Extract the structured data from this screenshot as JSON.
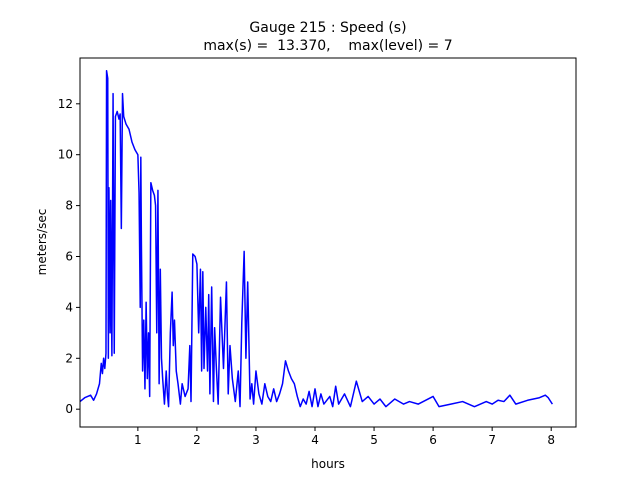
{
  "chart_data": {
    "type": "line",
    "title": "Gauge 215 : Speed (s)",
    "subtitle": "max(s) =  13.370,    max(level) = 7",
    "xlabel": "hours",
    "ylabel": "meters/sec",
    "xlim": [
      0.02,
      8.42
    ],
    "ylim": [
      -0.7,
      13.8
    ],
    "xticks": [
      1,
      2,
      3,
      4,
      5,
      6,
      7,
      8
    ],
    "yticks": [
      0,
      2,
      4,
      6,
      8,
      10,
      12
    ],
    "series": [
      {
        "color": "#0000ff",
        "x": [
          0.02,
          0.1,
          0.2,
          0.25,
          0.3,
          0.35,
          0.38,
          0.4,
          0.42,
          0.44,
          0.46,
          0.47,
          0.49,
          0.5,
          0.51,
          0.53,
          0.54,
          0.56,
          0.58,
          0.6,
          0.62,
          0.65,
          0.68,
          0.7,
          0.72,
          0.74,
          0.76,
          0.8,
          0.85,
          0.9,
          0.95,
          1.0,
          1.02,
          1.04,
          1.05,
          1.06,
          1.08,
          1.1,
          1.12,
          1.14,
          1.16,
          1.18,
          1.2,
          1.22,
          1.25,
          1.28,
          1.3,
          1.32,
          1.34,
          1.36,
          1.38,
          1.4,
          1.42,
          1.45,
          1.48,
          1.5,
          1.52,
          1.55,
          1.58,
          1.6,
          1.62,
          1.65,
          1.68,
          1.72,
          1.75,
          1.8,
          1.85,
          1.88,
          1.9,
          1.93,
          1.97,
          2.0,
          2.03,
          2.06,
          2.08,
          2.1,
          2.12,
          2.15,
          2.18,
          2.2,
          2.22,
          2.25,
          2.28,
          2.3,
          2.33,
          2.36,
          2.4,
          2.45,
          2.5,
          2.53,
          2.56,
          2.6,
          2.65,
          2.7,
          2.73,
          2.76,
          2.8,
          2.83,
          2.86,
          2.9,
          2.93,
          2.96,
          3.0,
          3.05,
          3.1,
          3.15,
          3.2,
          3.25,
          3.3,
          3.35,
          3.4,
          3.45,
          3.5,
          3.55,
          3.6,
          3.65,
          3.7,
          3.75,
          3.8,
          3.85,
          3.9,
          3.95,
          4.0,
          4.05,
          4.1,
          4.15,
          4.25,
          4.3,
          4.35,
          4.4,
          4.5,
          4.6,
          4.7,
          4.8,
          4.9,
          5.0,
          5.1,
          5.2,
          5.35,
          5.5,
          5.6,
          5.75,
          6.0,
          6.1,
          6.3,
          6.5,
          6.7,
          6.9,
          7.0,
          7.1,
          7.2,
          7.3,
          7.4,
          7.6,
          7.8,
          7.9,
          7.95,
          8.02
        ],
        "values": [
          0.3,
          0.45,
          0.55,
          0.35,
          0.6,
          1.0,
          1.8,
          1.4,
          2.0,
          1.6,
          2.2,
          13.3,
          13.0,
          2.0,
          8.7,
          3.0,
          8.2,
          2.1,
          12.4,
          2.2,
          11.5,
          11.7,
          11.4,
          11.6,
          7.1,
          12.4,
          11.5,
          11.2,
          11.0,
          10.5,
          10.2,
          10.0,
          8.5,
          4.0,
          9.9,
          6.5,
          1.5,
          3.5,
          0.8,
          4.2,
          1.2,
          3.0,
          0.5,
          8.9,
          8.6,
          8.4,
          8.0,
          3.0,
          8.6,
          1.0,
          5.5,
          2.0,
          1.2,
          0.2,
          1.5,
          0.6,
          0.1,
          3.0,
          4.6,
          2.5,
          3.5,
          1.5,
          1.0,
          0.2,
          1.0,
          0.5,
          0.8,
          2.5,
          0.3,
          6.1,
          6.0,
          5.7,
          3.0,
          5.5,
          1.5,
          5.4,
          1.6,
          4.0,
          1.5,
          4.5,
          0.6,
          4.8,
          0.3,
          3.2,
          1.6,
          0.2,
          4.4,
          1.6,
          5.0,
          0.6,
          2.5,
          1.2,
          0.3,
          1.5,
          0.1,
          3.4,
          6.2,
          2.0,
          5.0,
          0.4,
          1.0,
          0.2,
          1.5,
          0.6,
          0.2,
          1.0,
          0.5,
          0.3,
          0.8,
          0.3,
          0.6,
          1.0,
          1.9,
          1.5,
          1.2,
          1.0,
          0.5,
          0.1,
          0.4,
          0.2,
          0.7,
          0.1,
          0.8,
          0.1,
          0.6,
          0.2,
          0.5,
          0.1,
          0.9,
          0.2,
          0.6,
          0.1,
          1.1,
          0.3,
          0.5,
          0.2,
          0.4,
          0.1,
          0.4,
          0.2,
          0.3,
          0.2,
          0.5,
          0.1,
          0.2,
          0.3,
          0.1,
          0.3,
          0.2,
          0.35,
          0.3,
          0.55,
          0.2,
          0.35,
          0.45,
          0.55,
          0.45,
          0.2
        ]
      }
    ]
  }
}
